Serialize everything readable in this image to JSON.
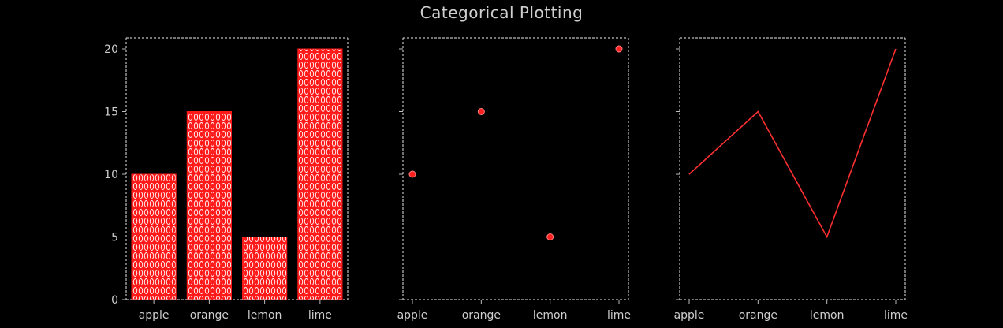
{
  "chart_data": {
    "title": "Categorical Plotting",
    "categories": [
      "apple",
      "orange",
      "lemon",
      "lime"
    ],
    "values": [
      10,
      15,
      5,
      20
    ],
    "ylim": [
      0,
      20
    ],
    "yticks": [
      0,
      5,
      10,
      15,
      20
    ],
    "colors": {
      "background": "#000000",
      "axes": "#bdbdbd",
      "text": "#cfcfcf",
      "bar_fill": "#ff1a1a",
      "bar_hatch": "#ffffff",
      "marker": "#ff2020",
      "line": "#ff3030"
    },
    "subplots": [
      {
        "type": "bar",
        "categories": [
          "apple",
          "orange",
          "lemon",
          "lime"
        ],
        "values": [
          10,
          15,
          5,
          20
        ],
        "hatch": "0"
      },
      {
        "type": "scatter",
        "categories": [
          "apple",
          "orange",
          "lemon",
          "lime"
        ],
        "values": [
          10,
          15,
          5,
          20
        ]
      },
      {
        "type": "line",
        "categories": [
          "apple",
          "orange",
          "lemon",
          "lime"
        ],
        "values": [
          10,
          15,
          5,
          20
        ]
      }
    ]
  }
}
